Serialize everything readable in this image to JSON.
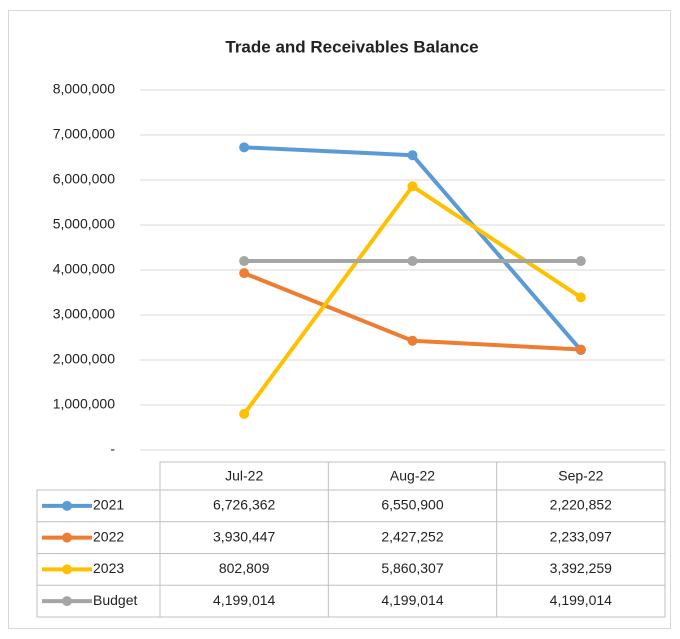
{
  "chart_data": {
    "type": "line",
    "title": "Trade and Receivables Balance",
    "categories": [
      "Jul-22",
      "Aug-22",
      "Sep-22"
    ],
    "series": [
      {
        "name": "2021",
        "color": "#5b9bd5",
        "values": [
          6726362,
          6550900,
          2220852
        ],
        "value_labels": [
          "6,726,362",
          "6,550,900",
          "2,220,852"
        ]
      },
      {
        "name": "2022",
        "color": "#ed7d31",
        "values": [
          3930447,
          2427252,
          2233097
        ],
        "value_labels": [
          "3,930,447",
          "2,427,252",
          "2,233,097"
        ]
      },
      {
        "name": "2023",
        "color": "#ffc000",
        "values": [
          802809,
          5860307,
          3392259
        ],
        "value_labels": [
          "802,809",
          "5,860,307",
          "3,392,259"
        ]
      },
      {
        "name": "Budget",
        "color": "#a5a5a5",
        "values": [
          4199014,
          4199014,
          4199014
        ],
        "value_labels": [
          "4,199,014",
          "4,199,014",
          "4,199,014"
        ]
      }
    ],
    "ylim": [
      0,
      8000000
    ],
    "yticks": [
      {
        "value": 0,
        "label": "-"
      },
      {
        "value": 1000000,
        "label": "1,000,000"
      },
      {
        "value": 2000000,
        "label": "2,000,000"
      },
      {
        "value": 3000000,
        "label": "3,000,000"
      },
      {
        "value": 4000000,
        "label": "4,000,000"
      },
      {
        "value": 5000000,
        "label": "5,000,000"
      },
      {
        "value": 6000000,
        "label": "6,000,000"
      },
      {
        "value": 7000000,
        "label": "7,000,000"
      },
      {
        "value": 8000000,
        "label": "8,000,000"
      }
    ],
    "grid": true
  }
}
